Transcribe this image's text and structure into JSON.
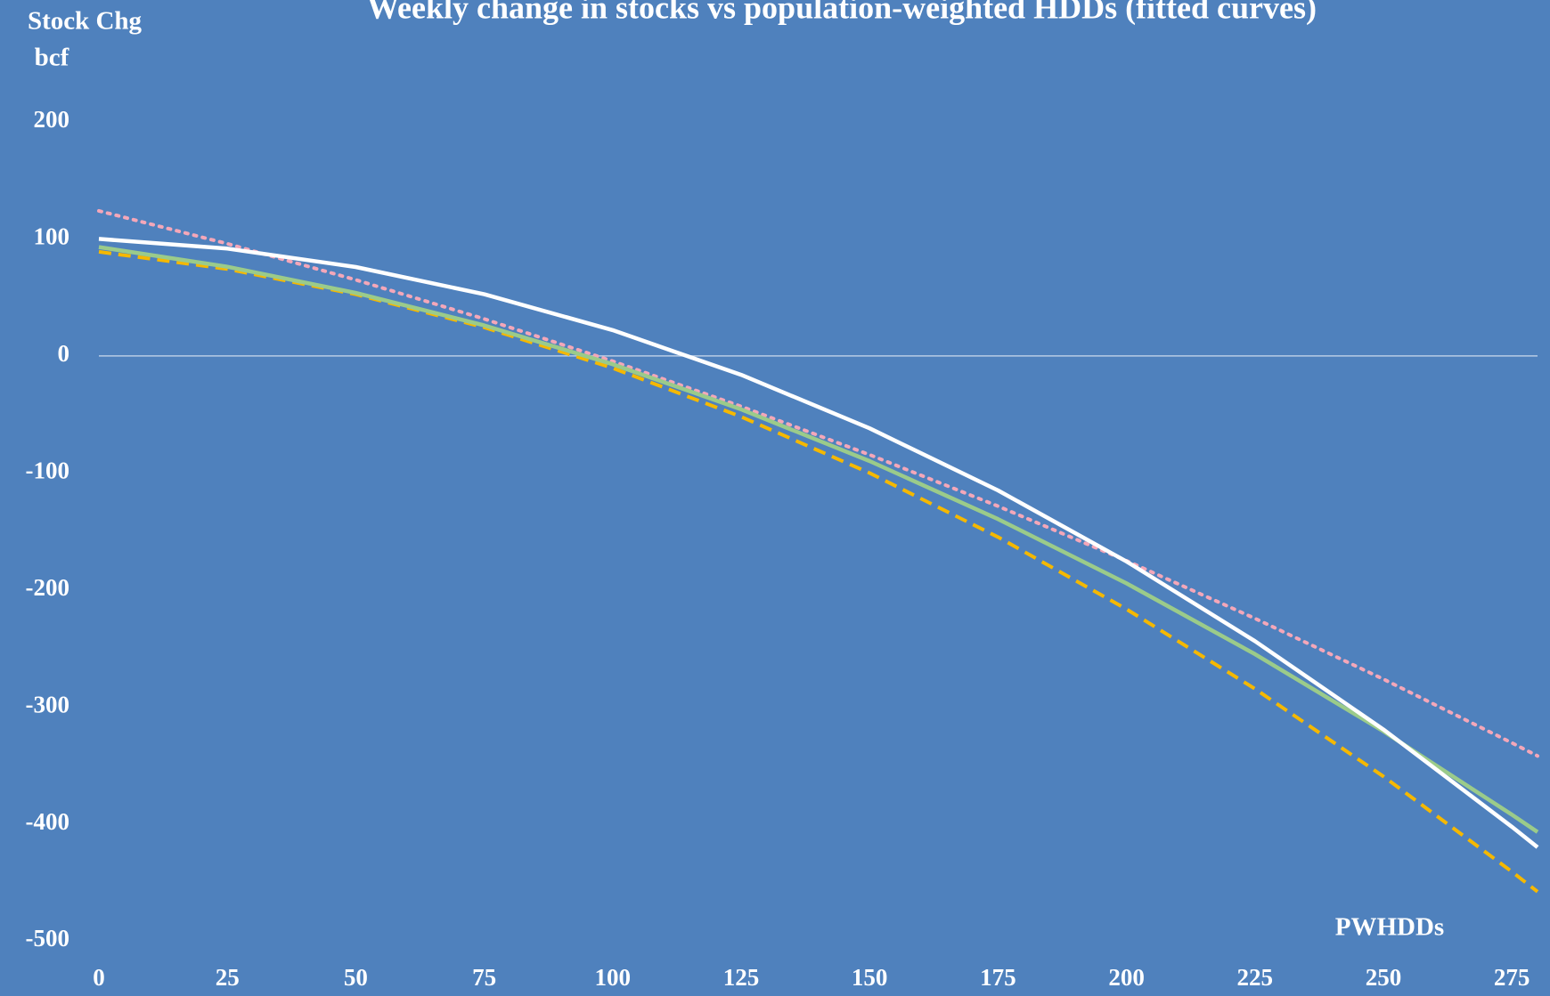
{
  "chart_data": {
    "type": "line",
    "title": "Weekly change in stocks vs population-weighted HDDs (fitted curves)",
    "y_label": [
      "Stock Chg",
      "bcf"
    ],
    "x_label": "PWHDDs",
    "x": [
      0,
      25,
      50,
      75,
      100,
      125,
      150,
      175,
      200,
      225,
      250,
      275,
      280
    ],
    "xlim": [
      0,
      280
    ],
    "xticks": [
      0,
      25,
      50,
      75,
      100,
      125,
      150,
      175,
      200,
      225,
      250,
      275
    ],
    "ylim": [
      -500,
      200
    ],
    "yticks": [
      -500,
      -400,
      -300,
      -200,
      -100,
      0,
      100,
      200
    ],
    "zero_line": true,
    "background": "#4f81bd",
    "series": [
      {
        "color": "#f4a7b9",
        "style": "dotted",
        "values": [
          124,
          95.9,
          65.0,
          31.6,
          -4.5,
          -43.2,
          -84.5,
          -128.5,
          -175.1,
          -224.4,
          -276.3,
          -330.8,
          -342
        ]
      },
      {
        "color": "#f5b800",
        "style": "dashed",
        "values": [
          89,
          74.2,
          52.6,
          24.4,
          -10.4,
          -52.0,
          -100.1,
          -154.9,
          -216.5,
          -284.6,
          -359.5,
          -440.9,
          -458
        ]
      },
      {
        "color": "#9bcb8a",
        "style": "solid",
        "values": [
          93,
          76.2,
          53.8,
          26.1,
          -7.1,
          -45.7,
          -89.9,
          -139.5,
          -194.4,
          -254.9,
          -320.9,
          -392.2,
          -407
        ]
      },
      {
        "color": "#ffffff",
        "style": "solid",
        "values": [
          100,
          91.7,
          76.0,
          52.7,
          22.0,
          -16.2,
          -61.9,
          -115.0,
          -175.7,
          -243.8,
          -319.4,
          -402.5,
          -420
        ]
      }
    ]
  }
}
